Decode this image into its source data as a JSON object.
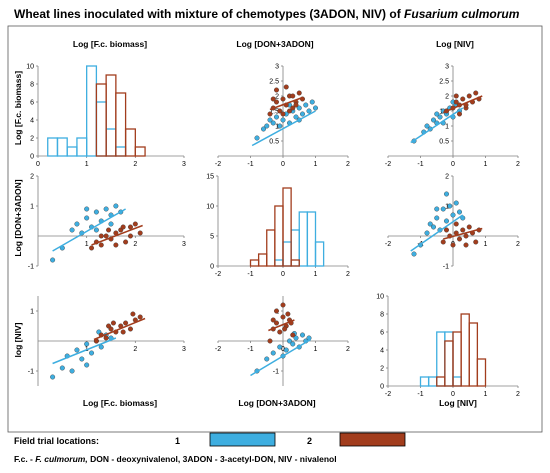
{
  "figure": {
    "title_prefix": "Wheat lines inoculated with mixture of chemotypes (3ADON, NIV) of ",
    "title_species": "Fusarium culmorum",
    "col_titles": [
      "Log [F.c. biomass]",
      "Log [DON+3ADON]",
      "Log [NIV]"
    ],
    "row_labels": [
      "Log [F.c. biomass]",
      "Log [DON+3ADON]",
      "log [NIV]"
    ],
    "bottom_labels": [
      "Log [F.c. biomass]",
      "Log [DON+3ADON]",
      "Log [NIV]"
    ],
    "legend": {
      "label": "Field trial locations:",
      "items": [
        {
          "name": "1",
          "color": "#3eaee0"
        },
        {
          "name": "2",
          "color": "#a23d1d"
        }
      ]
    },
    "footnote": {
      "a": "F.c. - ",
      "b": "F. culmorum,",
      "c": " DON - deoxynivalenol, 3ADON - 3-acetyl-DON, NIV - nivalenol"
    },
    "colors": {
      "loc1": "#3eaee0",
      "loc2": "#a23d1d",
      "axis": "#808080",
      "frame": "#5a5a5a"
    }
  },
  "chart_data": [
    {
      "panel": "r1c1",
      "type": "histogram",
      "x_variable": "Log [F.c. biomass]",
      "xlim": [
        0,
        3
      ],
      "ylim": [
        0,
        10
      ],
      "xticks": [
        0,
        1,
        2,
        3
      ],
      "yticks": [
        0,
        2,
        4,
        6,
        8,
        10
      ],
      "bin_width": 0.2,
      "series": [
        {
          "name": "1",
          "bin_starts": [
            0.2,
            0.4,
            0.6,
            0.8,
            1.0,
            1.2,
            1.4,
            1.6
          ],
          "counts": [
            2,
            2,
            1,
            2,
            10,
            6,
            3,
            1
          ]
        },
        {
          "name": "2",
          "bin_starts": [
            1.2,
            1.4,
            1.6,
            1.8,
            2.0
          ],
          "counts": [
            8,
            9,
            7,
            3,
            1
          ]
        }
      ]
    },
    {
      "panel": "r1c2",
      "type": "scatter",
      "x_variable": "Log [DON+3ADON]",
      "y_variable": "Log [F.c. biomass]",
      "xlim": [
        -2,
        2
      ],
      "ylim": [
        0,
        3
      ],
      "xticks": [
        -2,
        -1,
        0,
        1,
        2
      ],
      "yticks": [
        0.5,
        1,
        1.5,
        2,
        2.5,
        3
      ],
      "series": [
        {
          "name": "1",
          "x": [
            -0.8,
            -0.6,
            -0.5,
            -0.3,
            -0.2,
            -0.1,
            0.0,
            0.1,
            0.2,
            0.3,
            0.4,
            0.5,
            0.6,
            0.7,
            0.8,
            0.9,
            1.0,
            -0.4,
            0.2,
            0.5
          ],
          "y": [
            0.6,
            0.9,
            1.0,
            1.1,
            1.3,
            1.0,
            1.2,
            1.4,
            1.1,
            1.5,
            1.3,
            1.6,
            1.4,
            1.7,
            1.5,
            1.8,
            1.6,
            1.2,
            1.7,
            1.2
          ],
          "fit": [
            [
              -0.95,
              0.35
            ],
            [
              1.0,
              1.5
            ]
          ]
        },
        {
          "name": "2",
          "x": [
            -0.4,
            -0.3,
            -0.2,
            -0.1,
            0.0,
            0.1,
            0.2,
            0.3,
            0.4,
            0.5,
            -0.2,
            0.0,
            0.2,
            0.3,
            0.1,
            -0.3,
            0.4,
            0.6
          ],
          "y": [
            1.4,
            1.6,
            1.8,
            1.5,
            1.9,
            1.7,
            2.0,
            1.6,
            1.8,
            2.1,
            2.2,
            1.4,
            1.5,
            2.0,
            2.3,
            1.9,
            1.7,
            1.9
          ],
          "fit": [
            [
              -0.4,
              1.55
            ],
            [
              0.6,
              1.95
            ]
          ]
        }
      ]
    },
    {
      "panel": "r1c3",
      "type": "scatter",
      "x_variable": "Log [NIV]",
      "y_variable": "Log [F.c. biomass]",
      "xlim": [
        -2,
        2
      ],
      "ylim": [
        0,
        3
      ],
      "xticks": [
        -2,
        -1,
        0,
        1,
        2
      ],
      "yticks": [
        0.5,
        1,
        1.5,
        2,
        2.5,
        3
      ],
      "series": [
        {
          "name": "1",
          "x": [
            -1.2,
            -0.9,
            -0.8,
            -0.6,
            -0.5,
            -0.4,
            -0.3,
            -0.2,
            -0.1,
            0.0,
            0.1,
            0.2,
            -0.7,
            -0.3,
            0.0,
            -0.5
          ],
          "y": [
            0.5,
            0.8,
            1.0,
            1.2,
            1.1,
            1.3,
            1.5,
            1.4,
            1.6,
            1.3,
            1.7,
            1.5,
            0.9,
            1.1,
            1.8,
            1.4
          ],
          "fit": [
            [
              -1.3,
              0.45
            ],
            [
              0.3,
              1.6
            ]
          ]
        },
        {
          "name": "2",
          "x": [
            -0.2,
            0.0,
            0.1,
            0.2,
            0.3,
            0.4,
            0.5,
            0.6,
            0.7,
            0.2,
            0.4,
            0.1,
            0.8
          ],
          "y": [
            1.5,
            1.6,
            1.8,
            1.7,
            1.9,
            1.6,
            2.0,
            1.8,
            2.1,
            1.4,
            1.7,
            2.0,
            1.9
          ],
          "fit": [
            [
              -0.3,
              1.45
            ],
            [
              0.9,
              2.0
            ]
          ]
        }
      ]
    },
    {
      "panel": "r2c1",
      "type": "scatter",
      "x_variable": "Log [F.c. biomass]",
      "y_variable": "Log [DON+3ADON]",
      "xlim": [
        0,
        3
      ],
      "ylim": [
        -1,
        2
      ],
      "xticks": [
        1,
        2,
        3
      ],
      "yticks": [
        -1,
        1,
        2
      ],
      "series": [
        {
          "name": "1",
          "x": [
            0.3,
            0.5,
            0.7,
            0.8,
            0.9,
            1.0,
            1.1,
            1.2,
            1.3,
            1.4,
            1.5,
            1.6,
            1.7,
            1.2,
            1.0,
            1.5
          ],
          "y": [
            -0.8,
            -0.4,
            0.2,
            0.4,
            0.1,
            0.6,
            0.3,
            0.8,
            0.5,
            0.9,
            0.7,
            1.0,
            0.8,
            0.2,
            0.9,
            0.4
          ],
          "fit": [
            [
              0.3,
              -0.5
            ],
            [
              1.8,
              0.9
            ]
          ]
        },
        {
          "name": "2",
          "x": [
            1.1,
            1.2,
            1.3,
            1.4,
            1.5,
            1.6,
            1.7,
            1.8,
            1.9,
            2.0,
            2.1,
            1.3,
            1.6,
            1.9,
            1.45,
            1.75
          ],
          "y": [
            -0.4,
            -0.2,
            -0.3,
            0.0,
            -0.1,
            0.1,
            0.2,
            -0.2,
            0.3,
            0.4,
            0.1,
            0.0,
            -0.3,
            0.0,
            0.2,
            0.3
          ],
          "fit": [
            [
              1.1,
              -0.3
            ],
            [
              2.15,
              0.35
            ]
          ]
        }
      ]
    },
    {
      "panel": "r2c2",
      "type": "histogram",
      "x_variable": "Log [DON+3ADON]",
      "xlim": [
        -2,
        2
      ],
      "ylim": [
        0,
        15
      ],
      "xticks": [
        -2,
        -1,
        0,
        1,
        2
      ],
      "yticks": [
        0,
        5,
        10,
        15
      ],
      "bin_width": 0.25,
      "series": [
        {
          "name": "1",
          "bin_starts": [
            -0.25,
            0.0,
            0.25,
            0.5,
            0.75,
            1.0
          ],
          "counts": [
            1,
            4,
            6,
            9,
            9,
            4
          ]
        },
        {
          "name": "2",
          "bin_starts": [
            -1.0,
            -0.75,
            -0.5,
            -0.25,
            0.0,
            0.25
          ],
          "counts": [
            1,
            2,
            6,
            10,
            13,
            1
          ]
        }
      ]
    },
    {
      "panel": "r2c3",
      "type": "scatter",
      "x_variable": "Log [NIV]",
      "y_variable": "Log [DON+3ADON]",
      "xlim": [
        -2,
        2
      ],
      "ylim": [
        -1,
        2
      ],
      "xticks": [
        -2,
        -1,
        0,
        1,
        2
      ],
      "yticks": [
        -1,
        1,
        2
      ],
      "series": [
        {
          "name": "1",
          "x": [
            -1.2,
            -1.0,
            -0.8,
            -0.7,
            -0.5,
            -0.4,
            -0.3,
            -0.2,
            -0.1,
            0.0,
            0.1,
            0.2,
            -0.6,
            0.3,
            -0.2,
            -0.5
          ],
          "y": [
            -0.6,
            -0.3,
            0.1,
            0.4,
            0.6,
            0.2,
            0.9,
            0.5,
            1.0,
            0.7,
            1.1,
            0.8,
            0.3,
            0.6,
            1.4,
            0.9
          ],
          "fit": [
            [
              -1.3,
              -0.5
            ],
            [
              0.3,
              0.7
            ]
          ]
        },
        {
          "name": "2",
          "x": [
            -0.3,
            -0.1,
            0.0,
            0.1,
            0.2,
            0.3,
            0.4,
            0.5,
            0.6,
            0.7,
            0.8,
            0.1,
            0.4,
            -0.2
          ],
          "y": [
            -0.2,
            0.0,
            -0.3,
            0.1,
            -0.1,
            0.2,
            0.0,
            0.3,
            0.1,
            -0.2,
            0.2,
            0.4,
            -0.3,
            0.2
          ],
          "fit": [
            [
              -0.3,
              -0.1
            ],
            [
              0.9,
              0.25
            ]
          ]
        }
      ]
    },
    {
      "panel": "r3c1",
      "type": "scatter",
      "x_variable": "Log [F.c. biomass]",
      "y_variable": "log [NIV]",
      "xlim": [
        0,
        3
      ],
      "ylim": [
        -1.5,
        1.5
      ],
      "xticks": [
        1,
        2,
        3
      ],
      "yticks": [
        -1,
        1
      ],
      "series": [
        {
          "name": "1",
          "x": [
            0.3,
            0.5,
            0.6,
            0.8,
            0.9,
            1.0,
            1.1,
            1.2,
            1.3,
            1.4,
            1.5,
            1.0,
            0.7,
            1.25
          ],
          "y": [
            -1.2,
            -0.9,
            -0.5,
            -0.3,
            -0.6,
            -0.1,
            -0.4,
            0.0,
            -0.2,
            0.2,
            0.1,
            -0.8,
            -1.0,
            0.3
          ],
          "fit": [
            [
              0.3,
              -0.75
            ],
            [
              1.6,
              0.1
            ]
          ]
        },
        {
          "name": "2",
          "x": [
            1.2,
            1.3,
            1.4,
            1.5,
            1.6,
            1.7,
            1.8,
            1.9,
            2.0,
            2.1,
            1.45,
            1.75,
            1.55,
            1.95
          ],
          "y": [
            0.0,
            0.2,
            0.1,
            0.4,
            0.3,
            0.5,
            0.6,
            0.4,
            0.7,
            0.8,
            0.5,
            0.3,
            0.6,
            0.9
          ],
          "fit": [
            [
              1.15,
              0.05
            ],
            [
              2.2,
              0.75
            ]
          ]
        }
      ]
    },
    {
      "panel": "r3c2",
      "type": "scatter",
      "x_variable": "Log [DON+3ADON]",
      "y_variable": "log [NIV]",
      "xlim": [
        -2,
        2
      ],
      "ylim": [
        -1.5,
        1.5
      ],
      "xticks": [
        -2,
        -1,
        0,
        1,
        2
      ],
      "yticks": [
        -1,
        1
      ],
      "series": [
        {
          "name": "1",
          "x": [
            -0.8,
            -0.5,
            -0.3,
            -0.1,
            0.1,
            0.2,
            0.3,
            0.4,
            0.5,
            0.6,
            0.7,
            0.8,
            0.0,
            0.35
          ],
          "y": [
            -1.0,
            -0.6,
            -0.4,
            -0.2,
            -0.3,
            0.0,
            -0.1,
            0.1,
            -0.2,
            0.2,
            0.0,
            0.1,
            -0.5,
            0.25
          ],
          "fit": [
            [
              -1.0,
              -1.15
            ],
            [
              0.85,
              0.05
            ]
          ]
        },
        {
          "name": "2",
          "x": [
            -0.4,
            -0.3,
            -0.2,
            -0.1,
            0.0,
            0.1,
            0.2,
            0.3,
            -0.2,
            0.0,
            0.15,
            -0.3,
            0.05,
            0.25
          ],
          "y": [
            0.0,
            0.4,
            0.6,
            0.3,
            0.8,
            0.5,
            0.7,
            0.2,
            1.0,
            1.2,
            0.9,
            0.7,
            0.4,
            0.6
          ],
          "fit": [
            [
              -0.45,
              0.35
            ],
            [
              0.35,
              0.7
            ]
          ]
        }
      ]
    },
    {
      "panel": "r3c3",
      "type": "histogram",
      "x_variable": "Log [NIV]",
      "xlim": [
        -2,
        2
      ],
      "ylim": [
        0,
        10
      ],
      "xticks": [
        -2,
        -1,
        0,
        1,
        2
      ],
      "yticks": [
        0,
        2,
        4,
        6,
        8,
        10
      ],
      "bin_width": 0.25,
      "series": [
        {
          "name": "1",
          "bin_starts": [
            -1.0,
            -0.75,
            -0.5,
            -0.25,
            0.0
          ],
          "counts": [
            1,
            1,
            6,
            6,
            1
          ]
        },
        {
          "name": "2",
          "bin_starts": [
            -0.5,
            -0.25,
            0.0,
            0.25,
            0.5,
            0.75
          ],
          "counts": [
            1,
            5,
            6,
            8,
            7,
            3
          ]
        }
      ]
    }
  ]
}
